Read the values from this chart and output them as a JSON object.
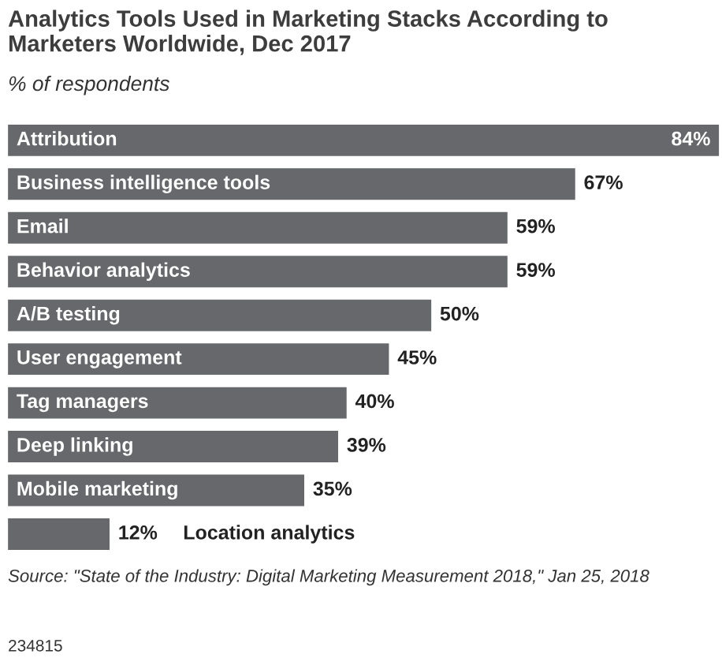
{
  "chart_data": {
    "type": "bar",
    "orientation": "horizontal",
    "title": "Analytics Tools Used in Marketing Stacks According to Marketers Worldwide, Dec 2017",
    "subtitle": "% of respondents",
    "categories": [
      "Attribution",
      "Business intelligence tools",
      "Email",
      "Behavior analytics",
      "A/B testing",
      "User engagement",
      "Tag managers",
      "Deep linking",
      "Mobile marketing",
      "Location analytics"
    ],
    "values": [
      84,
      67,
      59,
      59,
      50,
      45,
      40,
      39,
      35,
      12
    ],
    "value_labels": [
      "84%",
      "67%",
      "59%",
      "59%",
      "50%",
      "45%",
      "40%",
      "39%",
      "35%",
      "12%"
    ],
    "color": "#67686b",
    "annotations": [
      "Source: \"State of the Industry: Digital Marketing Measurement 2018,\" Jan 25, 2018",
      "234815"
    ]
  }
}
